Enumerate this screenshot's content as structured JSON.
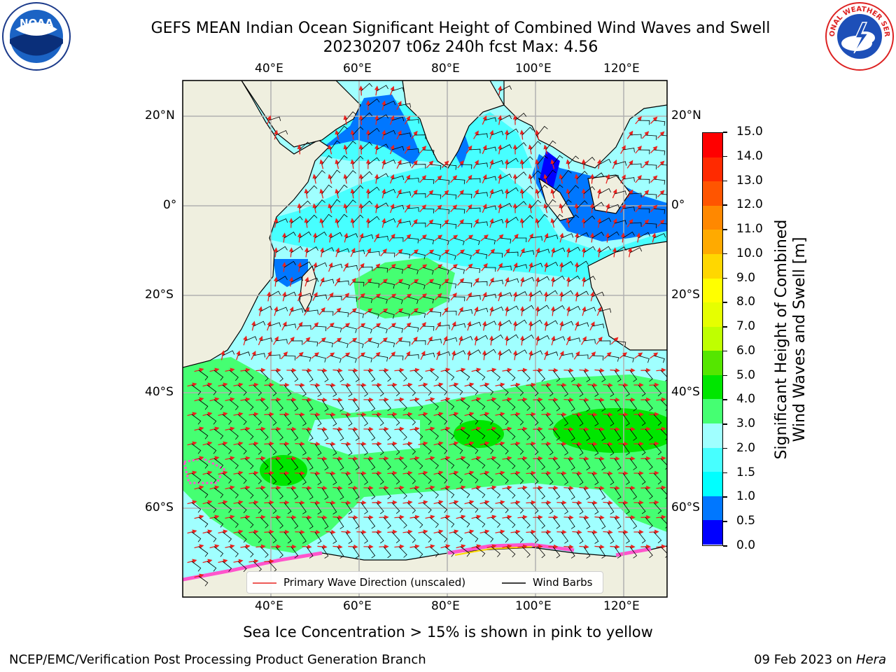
{
  "title": {
    "line1": "GEFS MEAN Indian Ocean Significant Height of Combined Wind Waves and Swell",
    "line2": "20230207 t06z 240h fcst   Max: 4.56"
  },
  "axes": {
    "lon_ticks": [
      "40°E",
      "60°E",
      "80°E",
      "100°E",
      "120°E"
    ],
    "lat_ticks": [
      "20°N",
      "0°",
      "20°S",
      "40°S",
      "60°S"
    ]
  },
  "colorbar": {
    "label_line1": "Significant Height of Combined",
    "label_line2": "Wind Waves and Swell [m]",
    "ticks": [
      "0.0",
      "0.5",
      "1.0",
      "1.5",
      "2.0",
      "3.0",
      "4.0",
      "5.0",
      "6.0",
      "7.0",
      "8.0",
      "9.0",
      "10.0",
      "11.0",
      "12.0",
      "13.0",
      "14.0",
      "15.0"
    ],
    "colors": [
      "#0000ff",
      "#0077ff",
      "#00ffff",
      "#47ffff",
      "#a0ffff",
      "#45ff72",
      "#00e600",
      "#55e600",
      "#bfff00",
      "#e6ff00",
      "#ffff00",
      "#ffd700",
      "#ffaa00",
      "#ff8800",
      "#ff5500",
      "#ff2a00",
      "#ff0000"
    ]
  },
  "legend": {
    "wave_direction": "Primary Wave Direction (unscaled)",
    "wind_barbs": "Wind Barbs"
  },
  "caption": "Sea Ice Concentration > 15% is shown in pink to yellow",
  "footer": {
    "left": "NCEP/EMC/Verification Post Processing Product Generation Branch",
    "right_prefix": "09 Feb 2023 on ",
    "right_host": "Hera"
  },
  "logos": {
    "noaa_text": "NOAA",
    "nws_text": "NATIONAL WEATHER SERVICE"
  },
  "map_colors": {
    "land": "#efefdf",
    "grid": "#b0b0b0",
    "arrow": "#e8231f",
    "barb": "#000000"
  }
}
